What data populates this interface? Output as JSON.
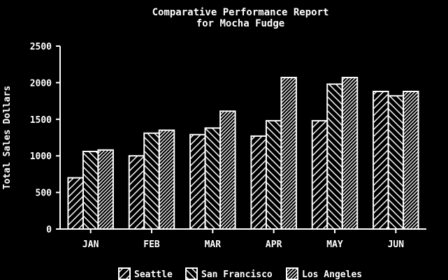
{
  "chart_data": {
    "type": "bar",
    "title": "Comparative Performance Report",
    "subtitle": "for Mocha Fudge",
    "xlabel": "",
    "ylabel": "Total Sales Dollars",
    "ylim": [
      0,
      2500
    ],
    "yticks": [
      0,
      500,
      1000,
      1500,
      2000,
      2500
    ],
    "categories": [
      "JAN",
      "FEB",
      "MAR",
      "APR",
      "MAY",
      "JUN"
    ],
    "series": [
      {
        "name": "Seattle",
        "pattern": "hatch-forward",
        "values": [
          700,
          1000,
          1290,
          1270,
          1480,
          1880
        ]
      },
      {
        "name": "San Francisco",
        "pattern": "hatch-backward",
        "values": [
          1060,
          1310,
          1380,
          1480,
          1980,
          1820
        ]
      },
      {
        "name": "Los Angeles",
        "pattern": "hatch-dense-forward",
        "values": [
          1080,
          1350,
          1610,
          2070,
          2070,
          1880
        ]
      }
    ],
    "legend": "bottom",
    "grid": false,
    "colors": {
      "background": "#000000",
      "foreground": "#ffffff"
    }
  }
}
